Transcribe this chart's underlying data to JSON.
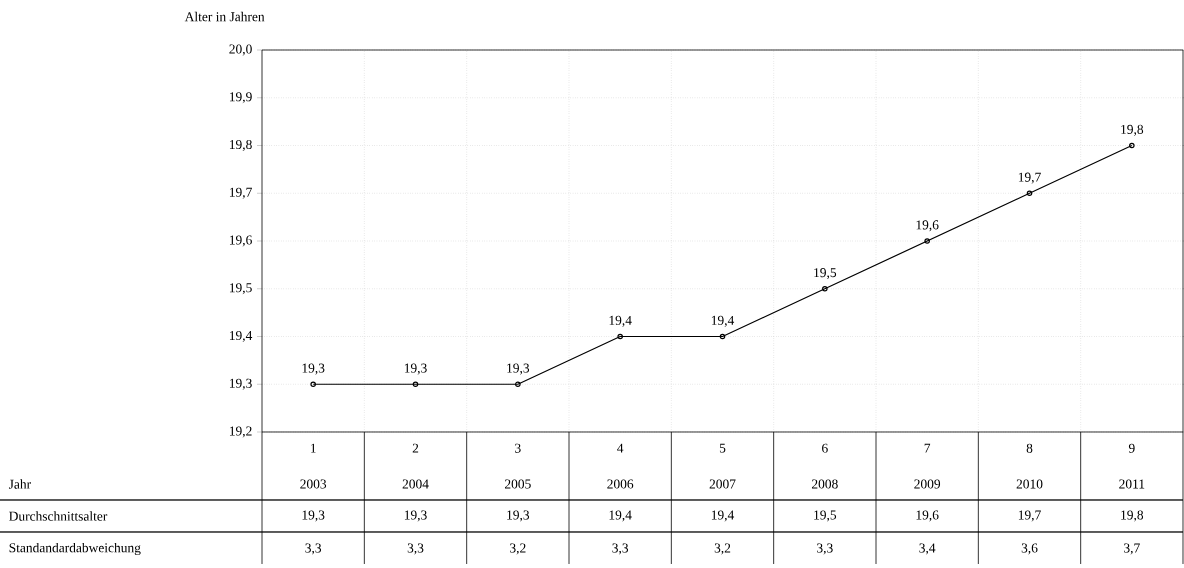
{
  "chart_data": {
    "type": "line",
    "ylabel": "Alter in Jahren",
    "categories": [
      "1",
      "2",
      "3",
      "4",
      "5",
      "6",
      "7",
      "8",
      "9"
    ],
    "values": [
      19.3,
      19.3,
      19.3,
      19.4,
      19.4,
      19.5,
      19.6,
      19.7,
      19.8
    ],
    "color": "#000000",
    "marker": "circle",
    "line_style": "solid",
    "value_labels": [
      "19,3",
      "19,3",
      "19,3",
      "19,4",
      "19,4",
      "19,5",
      "19,6",
      "19,7",
      "19,8"
    ],
    "grid": true,
    "ylim": [
      19.2,
      20.0
    ],
    "yticks": [
      {
        "value": 19.2,
        "label": "19,2"
      },
      {
        "value": 19.3,
        "label": "19,3"
      },
      {
        "value": 19.4,
        "label": "19,4"
      },
      {
        "value": 19.5,
        "label": "19,5"
      },
      {
        "value": 19.6,
        "label": "19,6"
      },
      {
        "value": 19.7,
        "label": "19,7"
      },
      {
        "value": 19.8,
        "label": "19,8"
      },
      {
        "value": 19.9,
        "label": "19,9"
      },
      {
        "value": 20.0,
        "label": "20,0"
      }
    ],
    "annotations": [
      "Jahr",
      "2003",
      "2004",
      "2005",
      "2006",
      "2007",
      "2008",
      "2009",
      "2010",
      "2011",
      "Durchschnittsalter",
      "Standandardabweichung",
      "3,3",
      "3,3",
      "3,2",
      "3,3",
      "3,2",
      "3,3",
      "3,4",
      "3,6",
      "3,7"
    ]
  }
}
